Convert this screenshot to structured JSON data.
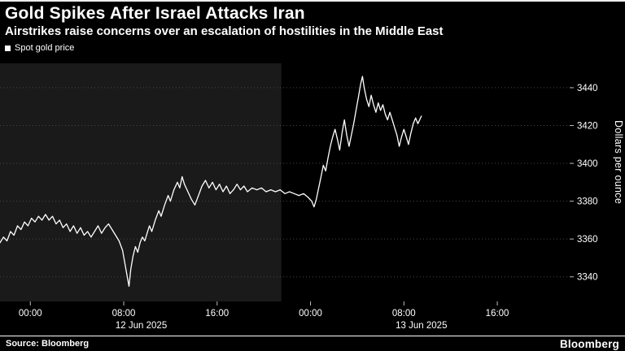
{
  "header": {
    "title": "Gold Spikes After Israel Attacks Iran",
    "subtitle": "Airstrikes raise concerns over an escalation of hostilities in the Middle East",
    "legend": [
      {
        "label": "Spot gold price",
        "marker_color": "#ffffff"
      }
    ]
  },
  "footer": {
    "source": "Source: Bloomberg",
    "brand": "Bloomberg"
  },
  "chart_data": {
    "type": "line",
    "title": "Gold Spikes After Israel Attacks Iran",
    "subtitle": "Airstrikes raise concerns over an escalation of hostilities in the Middle East",
    "ylabel": "Dollars per ounce",
    "x_unit": "hours since 12 Jun 2025 00:00",
    "xlim": [
      -2.6,
      46.2
    ],
    "ylim": [
      3327,
      3452
    ],
    "grid": "horizontal-dotted",
    "legend_position": "top-left",
    "background": "#000000",
    "shaded_region": {
      "from_hour": -2.6,
      "to_hour": 21.5,
      "color": "#1a1a1a"
    },
    "x_ticks": [
      {
        "hour": 0,
        "label": "00:00"
      },
      {
        "hour": 8,
        "label": "08:00"
      },
      {
        "hour": 16,
        "label": "16:00"
      },
      {
        "hour": 24,
        "label": "00:00"
      },
      {
        "hour": 32,
        "label": "08:00"
      },
      {
        "hour": 40,
        "label": "16:00"
      }
    ],
    "day_labels": [
      {
        "label": "12 Jun 2025",
        "center_hour": 9.5
      },
      {
        "label": "13 Jun 2025",
        "center_hour": 33.5
      }
    ],
    "y_ticks": [
      3340,
      3360,
      3380,
      3400,
      3420,
      3440
    ],
    "series": [
      {
        "name": "Spot gold price",
        "color": "#ffffff",
        "points": [
          [
            -2.6,
            3358
          ],
          [
            -2.3,
            3361
          ],
          [
            -2.0,
            3359
          ],
          [
            -1.7,
            3364
          ],
          [
            -1.4,
            3362
          ],
          [
            -1.1,
            3367
          ],
          [
            -0.8,
            3365
          ],
          [
            -0.5,
            3369
          ],
          [
            -0.2,
            3367
          ],
          [
            0.1,
            3371
          ],
          [
            0.4,
            3369
          ],
          [
            0.7,
            3372
          ],
          [
            1.0,
            3370
          ],
          [
            1.3,
            3373
          ],
          [
            1.6,
            3370
          ],
          [
            1.9,
            3372
          ],
          [
            2.2,
            3368
          ],
          [
            2.5,
            3370
          ],
          [
            2.8,
            3366
          ],
          [
            3.1,
            3368
          ],
          [
            3.4,
            3364
          ],
          [
            3.7,
            3367
          ],
          [
            4.0,
            3363
          ],
          [
            4.3,
            3366
          ],
          [
            4.6,
            3362
          ],
          [
            4.9,
            3364
          ],
          [
            5.2,
            3361
          ],
          [
            5.5,
            3364
          ],
          [
            5.8,
            3367
          ],
          [
            6.1,
            3363
          ],
          [
            6.4,
            3366
          ],
          [
            6.7,
            3368
          ],
          [
            7.0,
            3365
          ],
          [
            7.3,
            3362
          ],
          [
            7.6,
            3359
          ],
          [
            7.9,
            3354
          ],
          [
            8.1,
            3347
          ],
          [
            8.3,
            3340
          ],
          [
            8.45,
            3335
          ],
          [
            8.6,
            3344
          ],
          [
            8.8,
            3351
          ],
          [
            9.0,
            3356
          ],
          [
            9.2,
            3353
          ],
          [
            9.4,
            3358
          ],
          [
            9.6,
            3361
          ],
          [
            9.8,
            3359
          ],
          [
            10.0,
            3363
          ],
          [
            10.2,
            3367
          ],
          [
            10.4,
            3364
          ],
          [
            10.7,
            3370
          ],
          [
            11.0,
            3375
          ],
          [
            11.2,
            3372
          ],
          [
            11.5,
            3378
          ],
          [
            11.8,
            3383
          ],
          [
            12.0,
            3380
          ],
          [
            12.3,
            3386
          ],
          [
            12.6,
            3390
          ],
          [
            12.8,
            3387
          ],
          [
            13.0,
            3393
          ],
          [
            13.2,
            3389
          ],
          [
            13.5,
            3385
          ],
          [
            13.8,
            3381
          ],
          [
            14.1,
            3378
          ],
          [
            14.4,
            3383
          ],
          [
            14.7,
            3388
          ],
          [
            15.0,
            3391
          ],
          [
            15.3,
            3387
          ],
          [
            15.6,
            3390
          ],
          [
            15.9,
            3386
          ],
          [
            16.2,
            3389
          ],
          [
            16.5,
            3385
          ],
          [
            16.8,
            3388
          ],
          [
            17.1,
            3384
          ],
          [
            17.4,
            3386
          ],
          [
            17.7,
            3389
          ],
          [
            18.0,
            3386
          ],
          [
            18.3,
            3388
          ],
          [
            18.6,
            3385
          ],
          [
            19.0,
            3387
          ],
          [
            19.4,
            3386
          ],
          [
            19.8,
            3387
          ],
          [
            20.2,
            3385
          ],
          [
            20.6,
            3386
          ],
          [
            21.0,
            3385
          ],
          [
            21.4,
            3386
          ],
          [
            21.8,
            3384
          ],
          [
            22.2,
            3385
          ],
          [
            22.6,
            3384
          ],
          [
            23.0,
            3383
          ],
          [
            23.4,
            3384
          ],
          [
            23.8,
            3382
          ],
          [
            24.1,
            3380
          ],
          [
            24.3,
            3377
          ],
          [
            24.5,
            3381
          ],
          [
            24.7,
            3387
          ],
          [
            24.9,
            3393
          ],
          [
            25.1,
            3399
          ],
          [
            25.3,
            3396
          ],
          [
            25.5,
            3403
          ],
          [
            25.7,
            3409
          ],
          [
            25.9,
            3414
          ],
          [
            26.1,
            3418
          ],
          [
            26.3,
            3413
          ],
          [
            26.5,
            3407
          ],
          [
            26.7,
            3416
          ],
          [
            26.9,
            3423
          ],
          [
            27.1,
            3415
          ],
          [
            27.3,
            3409
          ],
          [
            27.5,
            3415
          ],
          [
            27.7,
            3421
          ],
          [
            27.9,
            3428
          ],
          [
            28.1,
            3435
          ],
          [
            28.3,
            3442
          ],
          [
            28.45,
            3446
          ],
          [
            28.6,
            3440
          ],
          [
            28.8,
            3434
          ],
          [
            29.0,
            3430
          ],
          [
            29.2,
            3436
          ],
          [
            29.4,
            3431
          ],
          [
            29.6,
            3427
          ],
          [
            29.8,
            3432
          ],
          [
            30.0,
            3428
          ],
          [
            30.2,
            3431
          ],
          [
            30.4,
            3426
          ],
          [
            30.6,
            3423
          ],
          [
            30.8,
            3427
          ],
          [
            31.0,
            3423
          ],
          [
            31.2,
            3419
          ],
          [
            31.4,
            3415
          ],
          [
            31.6,
            3409
          ],
          [
            31.8,
            3414
          ],
          [
            32.0,
            3418
          ],
          [
            32.2,
            3414
          ],
          [
            32.4,
            3410
          ],
          [
            32.6,
            3416
          ],
          [
            32.8,
            3421
          ],
          [
            33.0,
            3424
          ],
          [
            33.2,
            3421
          ],
          [
            33.5,
            3425
          ]
        ]
      }
    ]
  }
}
